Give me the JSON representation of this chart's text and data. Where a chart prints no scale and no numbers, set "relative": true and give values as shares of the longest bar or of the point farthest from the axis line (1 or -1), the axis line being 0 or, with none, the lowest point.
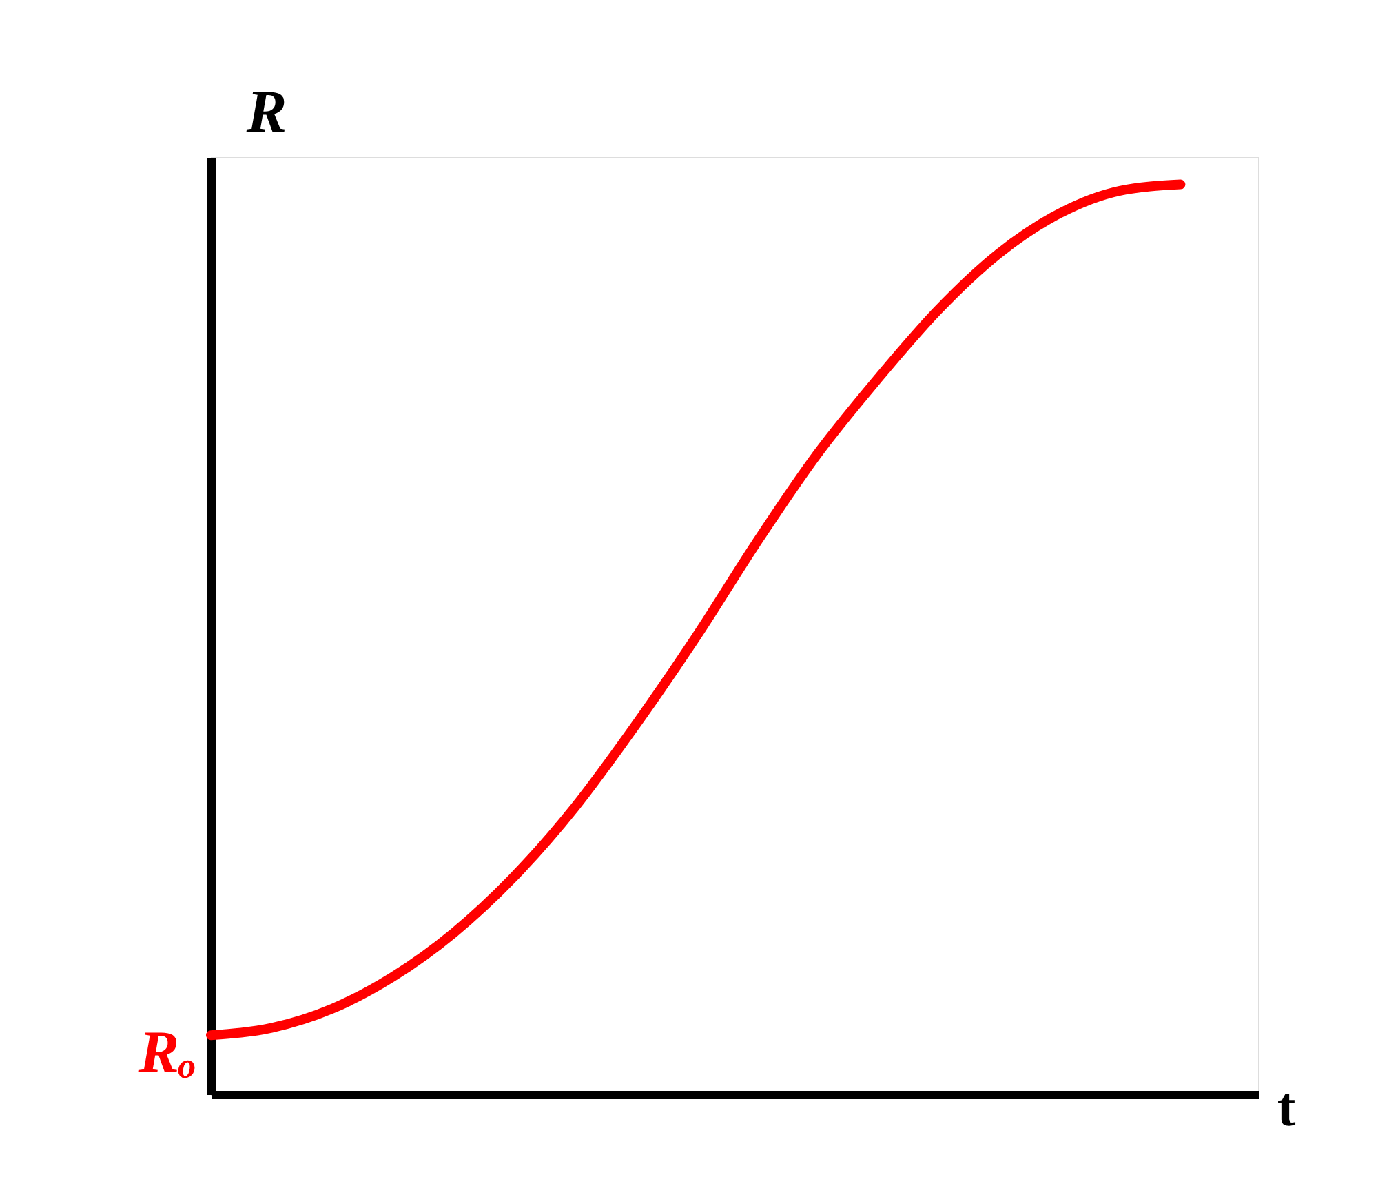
{
  "chart_data": {
    "type": "line",
    "relative": true,
    "xlabel": "t",
    "ylabel": "R",
    "categories": [
      null,
      null,
      null,
      null,
      null,
      null,
      null,
      null,
      null,
      null,
      null,
      null,
      null,
      null,
      null,
      null,
      null
    ],
    "series": [
      {
        "color": "#ff0000",
        "values": [
          0.065,
          0.073,
          0.094,
          0.129,
          0.177,
          0.239,
          0.315,
          0.405,
          0.502,
          0.606,
          0.703,
          0.786,
          0.862,
          0.924,
          0.968,
          0.993,
          1.0
        ]
      }
    ],
    "annotations": [
      "Rₒ"
    ],
    "tick_labels": false,
    "grid": false,
    "line_style": "solid"
  }
}
